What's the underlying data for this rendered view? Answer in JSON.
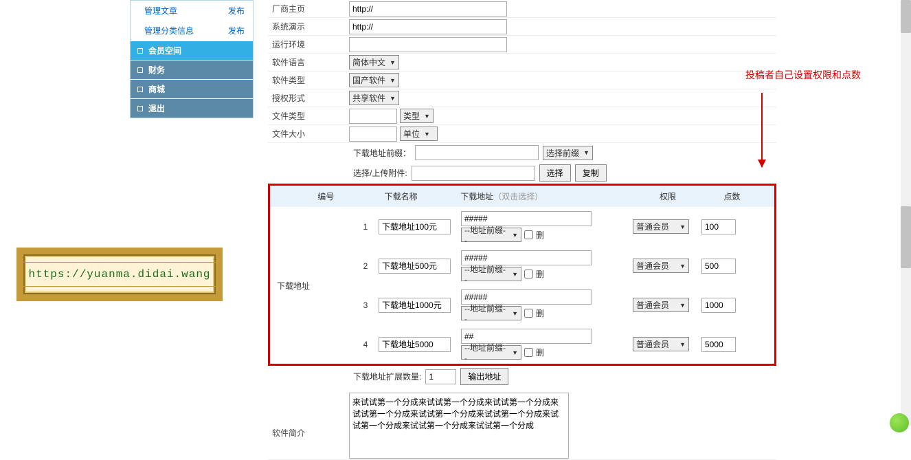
{
  "sidebar": {
    "subItems": [
      {
        "label": "管理文章",
        "action": "发布"
      },
      {
        "label": "管理分类信息",
        "action": "发布"
      }
    ],
    "navItems": [
      {
        "label": "会员空间",
        "active": true
      },
      {
        "label": "财务",
        "active": false
      },
      {
        "label": "商城",
        "active": false
      },
      {
        "label": "退出",
        "active": false
      }
    ]
  },
  "form": {
    "vendorHomeLabel": "厂商主页",
    "vendorHomeValue": "http://",
    "demoLabel": "系统演示",
    "demoValue": "http://",
    "envLabel": "运行环境",
    "envValue": "",
    "langLabel": "软件语言",
    "langValue": "简体中文",
    "typeLabel": "软件类型",
    "typeValue": "国产软件",
    "licenseLabel": "授权形式",
    "licenseValue": "共享软件",
    "fileTypeLabel": "文件类型",
    "fileTypeValue": "",
    "fileTypeSelect": "类型",
    "fileSizeLabel": "文件大小",
    "fileSizeValue": "",
    "fileSizeSelect": "单位",
    "prefixLabel": "下载地址前缀：",
    "prefixValue": "",
    "prefixSelect": "选择前缀",
    "attachLabel": "选择/上传附件:",
    "attachSelectBtn": "选择",
    "attachCopyBtn": "复制",
    "expandLabel": "下载地址扩展数量:",
    "expandValue": "1",
    "expandBtn": "输出地址",
    "introLabel": "软件简介",
    "introValue": "来试试第一个分成来试试第一个分成来试试第一个分成来试试第一个分成来试试第一个分成来试试第一个分成来试试第一个分成来试试第一个分成来试试第一个分成"
  },
  "dlTable": {
    "sideLabel": "下载地址",
    "headers": {
      "num": "编号",
      "name": "下载名称",
      "addr": "下载地址",
      "addrHint": "（双击选择）",
      "perm": "权限",
      "pts": "点数"
    },
    "addrPrefixSelect": "--地址前缀--",
    "delLabel": "删",
    "permOption": "普通会员",
    "rows": [
      {
        "num": "1",
        "name": "下载地址100元",
        "addr": "#####",
        "pts": "100"
      },
      {
        "num": "2",
        "name": "下载地址500元",
        "addr": "#####",
        "pts": "500"
      },
      {
        "num": "3",
        "name": "下载地址1000元",
        "addr": "#####",
        "pts": "1000"
      },
      {
        "num": "4",
        "name": "下载地址5000",
        "addr": "##",
        "pts": "5000"
      }
    ]
  },
  "annotation": "投稿者自己设置权限和点数",
  "watermark": "https://yuanma.didai.wang"
}
